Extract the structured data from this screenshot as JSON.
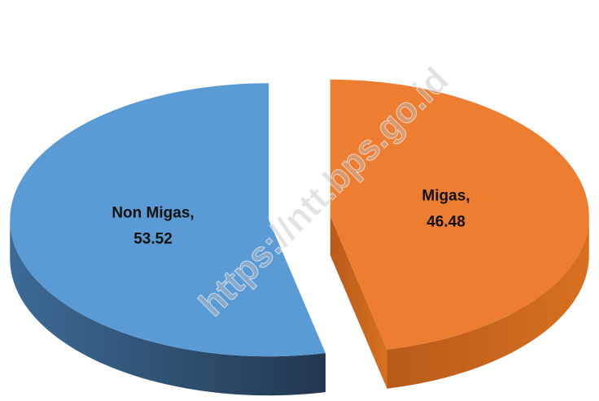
{
  "chart_data": {
    "type": "pie3d",
    "categories": [
      "Migas,",
      "Non Migas,"
    ],
    "values": [
      46.48,
      53.52
    ],
    "colors": [
      "#ED7D31",
      "#5B9BD5"
    ],
    "watermark": "https://ntt.bps.go.id"
  }
}
